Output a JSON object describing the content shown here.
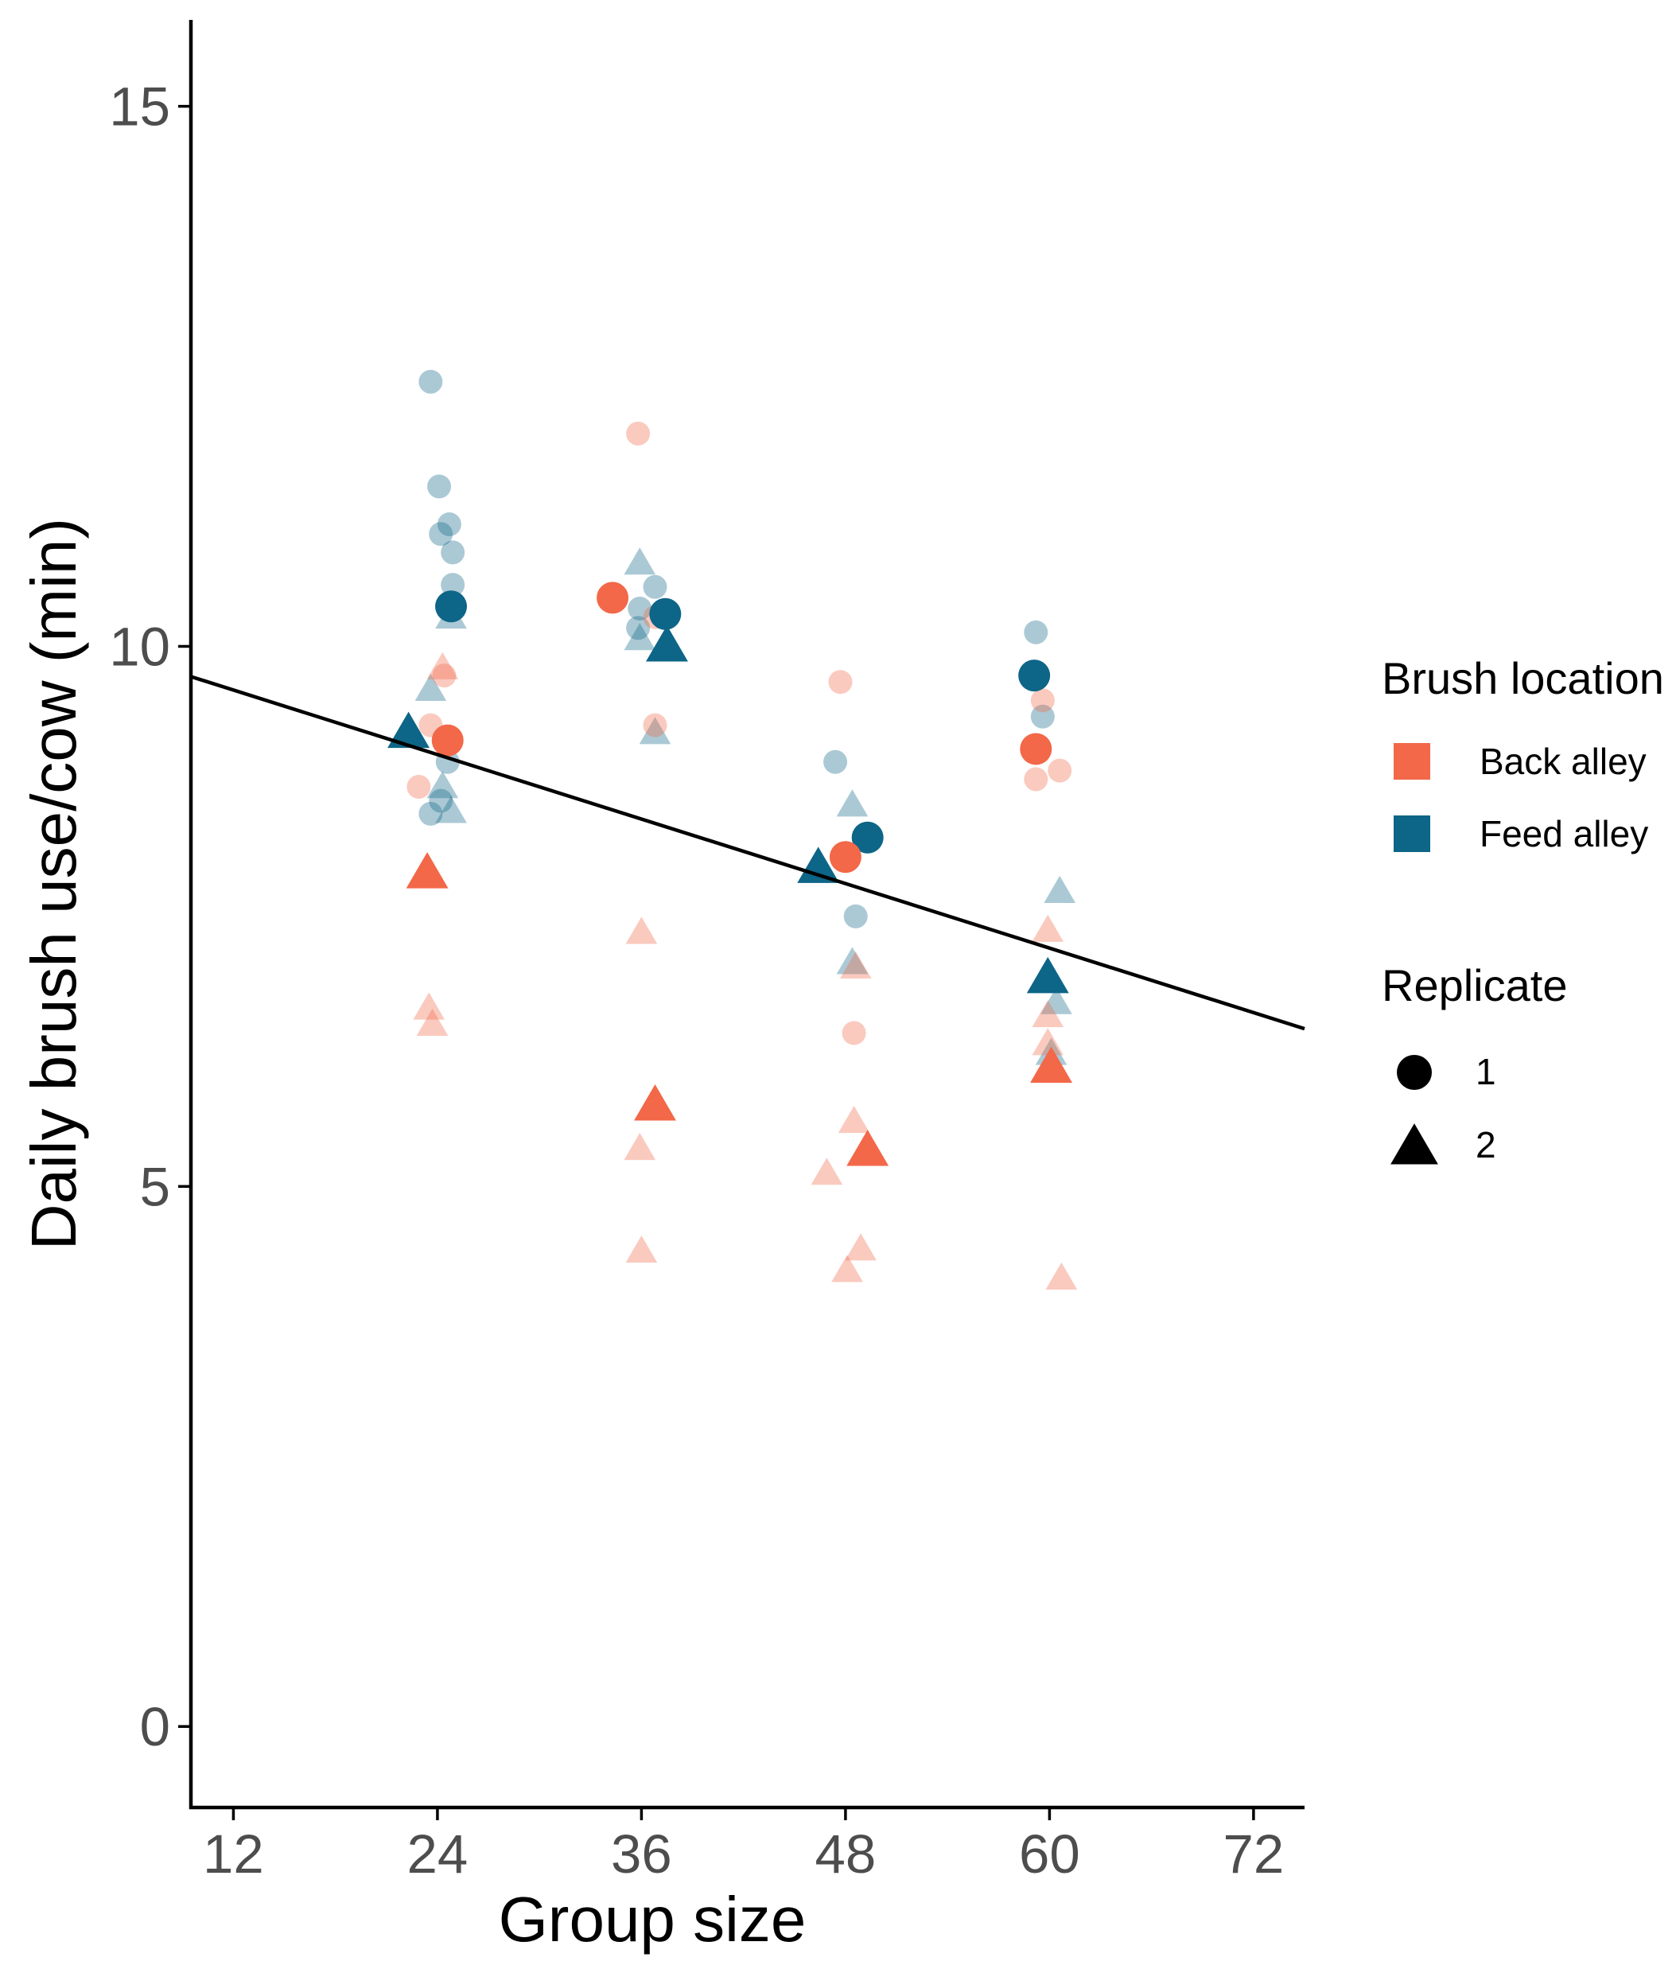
{
  "chart_data": {
    "type": "scatter",
    "xlabel": "Group size",
    "ylabel": "Daily brush use/cow (min)",
    "xlim": [
      9.5,
      75
    ],
    "ylim": [
      -0.75,
      15.8
    ],
    "xticks": [
      12,
      24,
      36,
      48,
      60,
      72
    ],
    "yticks": [
      0,
      5,
      10,
      15
    ],
    "grid": false,
    "legend_placement": "right",
    "colors": {
      "Back alley": "#f26848",
      "Feed alley": "#0d6587"
    },
    "legend": {
      "color_title": "Brush location",
      "color_items": [
        {
          "label": "Back alley",
          "color": "#f26848"
        },
        {
          "label": "Feed alley",
          "color": "#0d6587"
        }
      ],
      "shape_title": "Replicate",
      "shape_items": [
        {
          "label": "1",
          "shape": "circle"
        },
        {
          "label": "2",
          "shape": "triangle"
        }
      ]
    },
    "fit_line": {
      "x": [
        9.5,
        75
      ],
      "y": [
        9.72,
        6.46
      ]
    },
    "series": [
      {
        "location": "Feed alley",
        "replicate": "1",
        "kind": "mean",
        "points": [
          [
            24.8,
            10.37
          ],
          [
            37.4,
            10.3
          ],
          [
            59.1,
            9.73
          ],
          [
            49.3,
            8.23
          ]
        ]
      },
      {
        "location": "Feed alley",
        "replicate": "2",
        "kind": "mean",
        "points": [
          [
            22.3,
            9.2
          ],
          [
            37.5,
            10.0
          ],
          [
            46.4,
            7.95
          ],
          [
            59.9,
            6.93
          ]
        ]
      },
      {
        "location": "Back alley",
        "replicate": "1",
        "kind": "mean",
        "points": [
          [
            24.6,
            9.13
          ],
          [
            34.3,
            10.45
          ],
          [
            48.0,
            8.05
          ],
          [
            59.2,
            9.05
          ]
        ]
      },
      {
        "location": "Back alley",
        "replicate": "2",
        "kind": "mean",
        "points": [
          [
            23.4,
            7.9
          ],
          [
            36.8,
            5.75
          ],
          [
            49.3,
            5.33
          ],
          [
            60.1,
            6.1
          ]
        ]
      },
      {
        "location": "Feed alley",
        "replicate": "1",
        "kind": "individual",
        "points": [
          [
            23.6,
            12.45
          ],
          [
            24.1,
            11.48
          ],
          [
            24.2,
            11.04
          ],
          [
            24.7,
            11.13
          ],
          [
            24.9,
            10.87
          ],
          [
            24.9,
            10.57
          ],
          [
            35.9,
            10.35
          ],
          [
            35.8,
            10.17
          ],
          [
            36.8,
            10.55
          ],
          [
            24.6,
            8.93
          ],
          [
            23.6,
            8.45
          ],
          [
            24.2,
            8.57
          ],
          [
            47.4,
            8.93
          ],
          [
            48.6,
            7.5
          ],
          [
            59.2,
            10.13
          ],
          [
            59.6,
            9.35
          ]
        ]
      },
      {
        "location": "Feed alley",
        "replicate": "2",
        "kind": "individual",
        "points": [
          [
            24.8,
            10.27
          ],
          [
            35.9,
            10.77
          ],
          [
            35.9,
            10.07
          ],
          [
            36.8,
            9.2
          ],
          [
            23.6,
            9.6
          ],
          [
            24.3,
            8.7
          ],
          [
            24.8,
            8.47
          ],
          [
            48.4,
            8.53
          ],
          [
            48.4,
            7.07
          ],
          [
            60.6,
            7.73
          ],
          [
            60.4,
            6.7
          ],
          [
            60.1,
            6.23
          ]
        ]
      },
      {
        "location": "Back alley",
        "replicate": "1",
        "kind": "individual",
        "points": [
          [
            35.8,
            11.97
          ],
          [
            36.8,
            9.27
          ],
          [
            36.8,
            10.27
          ],
          [
            24.4,
            9.73
          ],
          [
            23.6,
            9.27
          ],
          [
            22.9,
            8.7
          ],
          [
            47.7,
            9.67
          ],
          [
            48.5,
            6.42
          ],
          [
            59.6,
            9.5
          ],
          [
            60.6,
            8.85
          ],
          [
            59.2,
            8.77
          ]
        ]
      },
      {
        "location": "Back alley",
        "replicate": "2",
        "kind": "individual",
        "points": [
          [
            24.3,
            9.8
          ],
          [
            36.0,
            7.35
          ],
          [
            35.9,
            5.35
          ],
          [
            36.0,
            4.4
          ],
          [
            23.7,
            6.5
          ],
          [
            23.5,
            6.65
          ],
          [
            48.6,
            7.03
          ],
          [
            48.5,
            5.6
          ],
          [
            46.9,
            5.12
          ],
          [
            48.1,
            4.22
          ],
          [
            48.9,
            4.42
          ],
          [
            59.9,
            7.37
          ],
          [
            59.9,
            6.58
          ],
          [
            59.9,
            6.32
          ],
          [
            60.7,
            4.15
          ]
        ]
      }
    ]
  }
}
